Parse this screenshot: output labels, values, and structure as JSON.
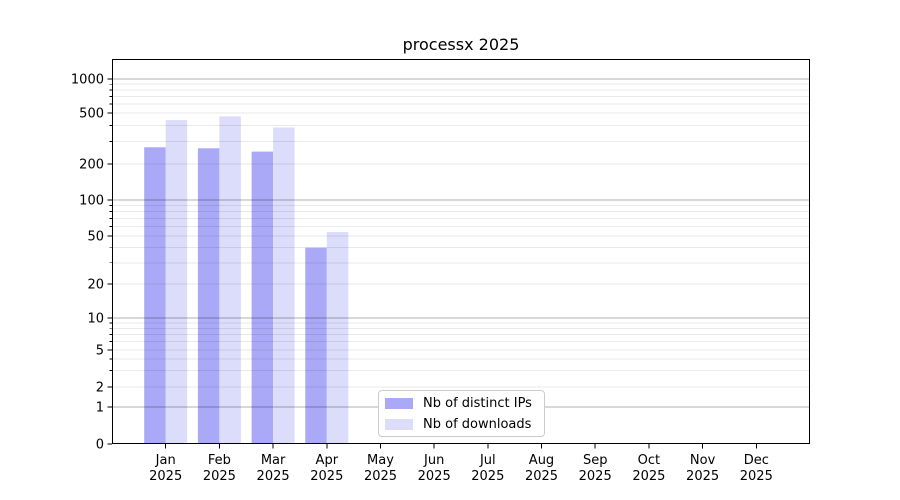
{
  "chart_data": {
    "type": "bar",
    "title": "processx 2025",
    "categories": [
      "Jan",
      "Feb",
      "Mar",
      "Apr",
      "May",
      "Jun",
      "Jul",
      "Aug",
      "Sep",
      "Oct",
      "Nov",
      "Dec"
    ],
    "x_axis": {
      "tick_label_line2": "2025"
    },
    "series": [
      {
        "name": "Nb of distinct IPs",
        "color": "#a9a9f7",
        "values": [
          270,
          265,
          250,
          40,
          null,
          null,
          null,
          null,
          null,
          null,
          null,
          null
        ]
      },
      {
        "name": "Nb of downloads",
        "color": "#dcdcfb",
        "values": [
          440,
          470,
          385,
          54,
          null,
          null,
          null,
          null,
          null,
          null,
          null,
          null
        ]
      }
    ],
    "y_axis": {
      "ticks": [
        0,
        1,
        2,
        5,
        10,
        20,
        50,
        100,
        200,
        500,
        1000
      ],
      "scale": "log-like",
      "major_gridlines": [
        1,
        10,
        100,
        1000
      ]
    },
    "legend_position": "lower center-left",
    "grid": "on",
    "colors": {
      "axis": "#000000",
      "major_grid": "#b0b0b0",
      "minor_grid": "#eaeaea"
    }
  }
}
